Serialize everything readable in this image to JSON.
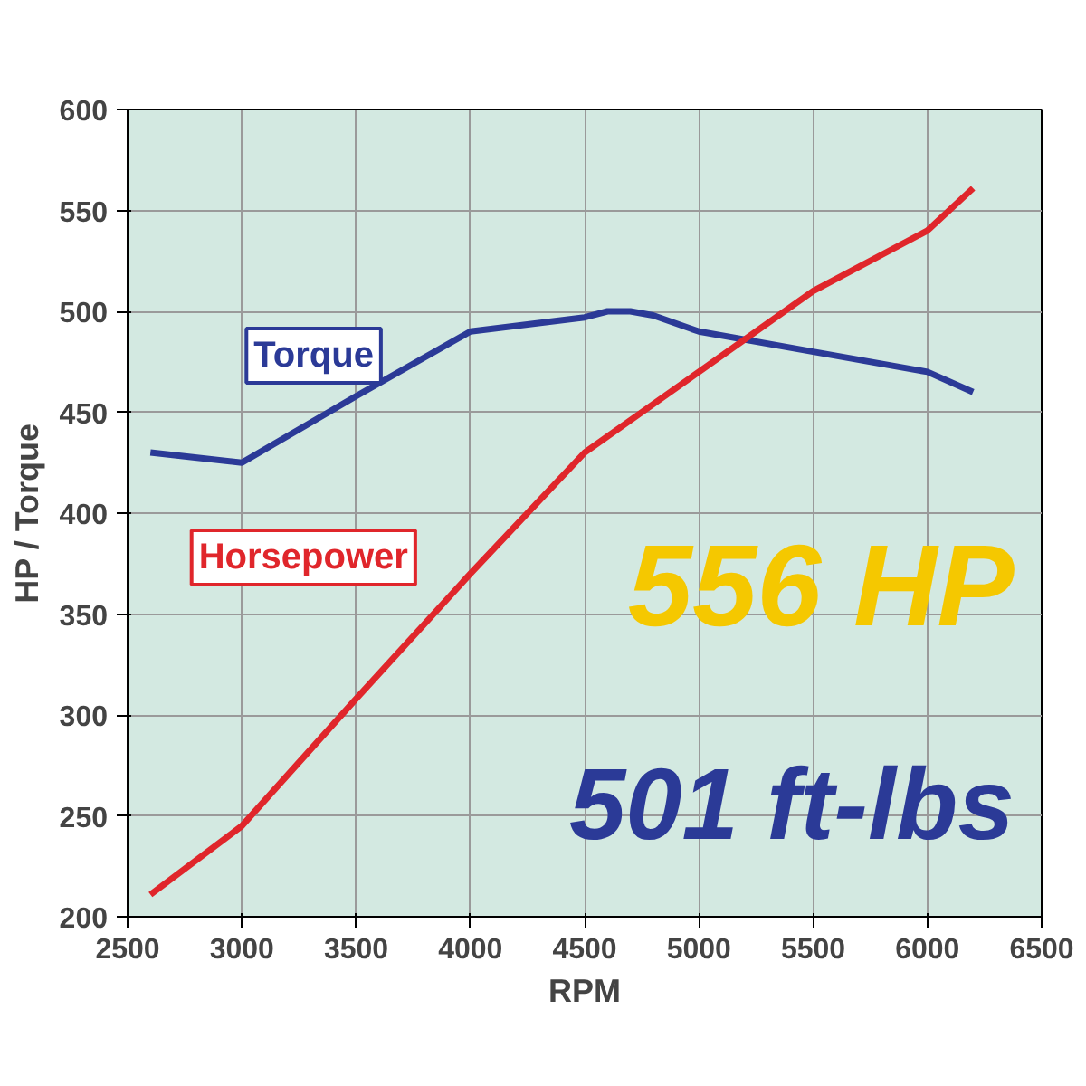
{
  "chart_data": {
    "type": "line",
    "xlabel": "RPM",
    "ylabel": "HP / Torque",
    "xlim": [
      2500,
      6500
    ],
    "xticks": [
      2500,
      3000,
      3500,
      4000,
      4500,
      5000,
      5500,
      6000,
      6500
    ],
    "ylim": [
      200,
      600
    ],
    "yticks": [
      200,
      250,
      300,
      350,
      400,
      450,
      500,
      550,
      600
    ],
    "grid": true,
    "legend": false,
    "marker": "none",
    "line_style": "solid",
    "series": [
      {
        "name": "Torque",
        "color": "#2b3a97",
        "x": [
          2600,
          3000,
          3500,
          4000,
          4500,
          4600,
          4700,
          4800,
          5000,
          5500,
          6000,
          6200
        ],
        "values": [
          430,
          425,
          458,
          490,
          497,
          500,
          500,
          498,
          490,
          480,
          470,
          460
        ]
      },
      {
        "name": "Horsepower",
        "color": "#e0262b",
        "x": [
          2600,
          3000,
          3500,
          4000,
          4500,
          5000,
          5500,
          6000,
          6200
        ],
        "values": [
          211,
          245,
          308,
          370,
          430,
          470,
          510,
          540,
          561
        ]
      }
    ],
    "annotations": [
      "556 HP",
      "501 ft-lbs"
    ]
  }
}
